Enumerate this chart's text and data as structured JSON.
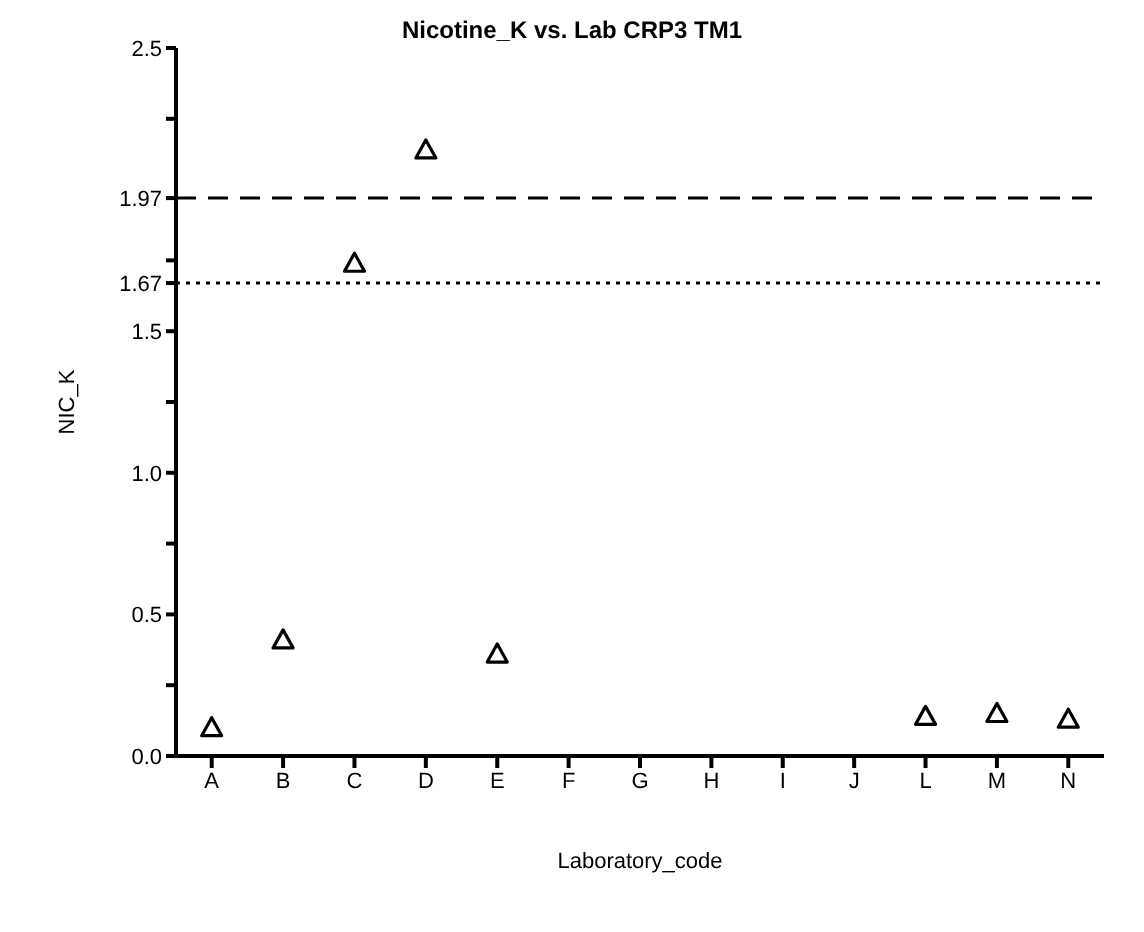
{
  "chart_data": {
    "type": "scatter",
    "title": "Nicotine_K vs. Lab CRP3 TM1",
    "xlabel": "Laboratory_code",
    "ylabel": "NIC_K",
    "categories": [
      "A",
      "B",
      "C",
      "D",
      "E",
      "F",
      "G",
      "H",
      "I",
      "J",
      "L",
      "M",
      "N"
    ],
    "values": [
      0.1,
      0.41,
      1.74,
      2.14,
      0.36,
      null,
      null,
      null,
      null,
      null,
      0.14,
      0.15,
      0.13
    ],
    "color": "#000000",
    "marker": "triangle",
    "grid": false,
    "legend": false,
    "ylim": [
      0,
      2.5
    ],
    "yticks": [
      {
        "value": 0,
        "label": "0.0"
      },
      {
        "value": 0.25,
        "label": null
      },
      {
        "value": 0.5,
        "label": "0.5"
      },
      {
        "value": 0.75,
        "label": null
      },
      {
        "value": 1,
        "label": "1.0"
      },
      {
        "value": 1.25,
        "label": null
      },
      1.5,
      1.67,
      {
        "value": 1.75,
        "label": null
      },
      1.97,
      {
        "value": 2.25,
        "label": null
      },
      2.5
    ],
    "ref_lines": [
      {
        "axis": "y",
        "value": 1.97,
        "line_style": "dashed",
        "color": "#000000"
      },
      {
        "axis": "y",
        "value": 1.67,
        "line_style": "dotted",
        "color": "#000000"
      }
    ]
  }
}
